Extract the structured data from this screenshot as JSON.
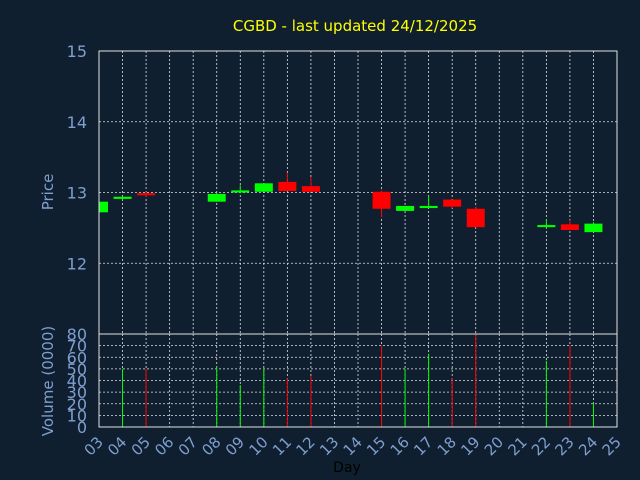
{
  "colors": {
    "background": "#0f1f30",
    "up": "#00ff00",
    "down": "#ff0000",
    "grid": "#e0e0e0",
    "title": "#ffff00",
    "axis_text": "#7f9fcf",
    "xlabel": "#000000"
  },
  "chart_data": {
    "type": "candlestick",
    "title": "CGBD - last updated 24/12/2025",
    "xlabel": "Day",
    "ylabel_price": "Price",
    "ylabel_volume": "Volume (0000)",
    "x_ticks": [
      "03",
      "04",
      "05",
      "06",
      "07",
      "08",
      "09",
      "10",
      "11",
      "12",
      "13",
      "14",
      "15",
      "16",
      "17",
      "18",
      "19",
      "20",
      "21",
      "22",
      "23",
      "24",
      "25"
    ],
    "price_ylim": [
      11,
      15
    ],
    "price_ticks": [
      12,
      13,
      14,
      15
    ],
    "volume_ylim": [
      0,
      80
    ],
    "volume_ticks": [
      0,
      10,
      20,
      30,
      40,
      50,
      60,
      70,
      80
    ],
    "grid": true,
    "candles": [
      {
        "day": "03",
        "open": 12.72,
        "close": 12.87,
        "high": 12.87,
        "low": 12.72,
        "volume": 48
      },
      {
        "day": "04",
        "open": 12.91,
        "close": 12.94,
        "high": 12.95,
        "low": 12.9,
        "volume": 50
      },
      {
        "day": "05",
        "open": 12.99,
        "close": 12.96,
        "high": 13.01,
        "low": 12.94,
        "volume": 50
      },
      {
        "day": "08",
        "open": 12.87,
        "close": 12.98,
        "high": 13.0,
        "low": 12.87,
        "volume": 52
      },
      {
        "day": "09",
        "open": 13.0,
        "close": 13.03,
        "high": 13.1,
        "low": 12.99,
        "volume": 36
      },
      {
        "day": "10",
        "open": 13.01,
        "close": 13.13,
        "high": 13.13,
        "low": 13.01,
        "volume": 50
      },
      {
        "day": "11",
        "open": 13.15,
        "close": 13.02,
        "high": 13.28,
        "low": 13.02,
        "volume": 42
      },
      {
        "day": "12",
        "open": 13.09,
        "close": 13.01,
        "high": 13.22,
        "low": 13.01,
        "volume": 44
      },
      {
        "day": "15",
        "open": 13.01,
        "close": 12.77,
        "high": 13.03,
        "low": 12.65,
        "volume": 70
      },
      {
        "day": "16",
        "open": 12.74,
        "close": 12.81,
        "high": 12.81,
        "low": 12.74,
        "volume": 50
      },
      {
        "day": "17",
        "open": 12.78,
        "close": 12.81,
        "high": 12.95,
        "low": 12.78,
        "volume": 63
      },
      {
        "day": "18",
        "open": 12.9,
        "close": 12.8,
        "high": 12.9,
        "low": 12.78,
        "volume": 42
      },
      {
        "day": "19",
        "open": 12.77,
        "close": 12.51,
        "high": 12.8,
        "low": 12.51,
        "volume": 80
      },
      {
        "day": "22",
        "open": 12.51,
        "close": 12.54,
        "high": 12.62,
        "low": 12.49,
        "volume": 57
      },
      {
        "day": "23",
        "open": 12.55,
        "close": 12.47,
        "high": 12.61,
        "low": 12.47,
        "volume": 70
      },
      {
        "day": "24",
        "open": 12.44,
        "close": 12.56,
        "high": 12.58,
        "low": 12.44,
        "volume": 21
      }
    ]
  }
}
